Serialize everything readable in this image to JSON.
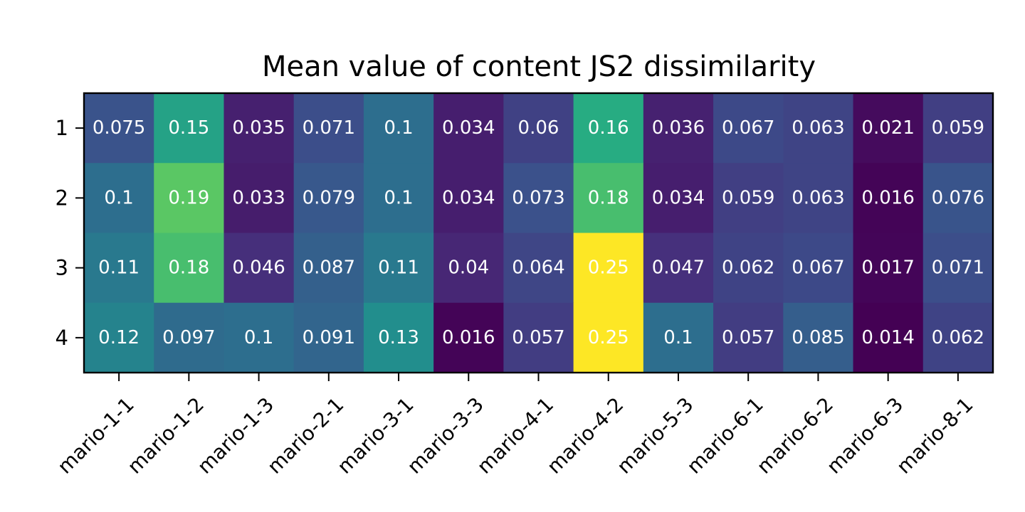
{
  "chart_data": {
    "type": "heatmap",
    "title": "Mean value of content JS2 dissimilarity",
    "xlabel": "",
    "ylabel": "",
    "colormap": "viridis",
    "vmin": 0.014,
    "vmax": 0.25,
    "x_categories": [
      "mario-1-1",
      "mario-1-2",
      "mario-1-3",
      "mario-2-1",
      "mario-3-1",
      "mario-3-3",
      "mario-4-1",
      "mario-4-2",
      "mario-5-3",
      "mario-6-1",
      "mario-6-2",
      "mario-6-3",
      "mario-8-1"
    ],
    "y_categories": [
      "1",
      "2",
      "3",
      "4"
    ],
    "values": [
      [
        0.075,
        0.15,
        0.035,
        0.071,
        0.1,
        0.034,
        0.06,
        0.16,
        0.036,
        0.067,
        0.063,
        0.021,
        0.059
      ],
      [
        0.1,
        0.19,
        0.033,
        0.079,
        0.1,
        0.034,
        0.073,
        0.18,
        0.034,
        0.059,
        0.063,
        0.016,
        0.076
      ],
      [
        0.11,
        0.18,
        0.046,
        0.087,
        0.11,
        0.04,
        0.064,
        0.25,
        0.047,
        0.062,
        0.067,
        0.017,
        0.071
      ],
      [
        0.12,
        0.097,
        0.1,
        0.091,
        0.13,
        0.016,
        0.057,
        0.25,
        0.1,
        0.057,
        0.085,
        0.014,
        0.062
      ]
    ],
    "cell_text_color": "#ffffff",
    "grid": false,
    "legend": "none"
  }
}
